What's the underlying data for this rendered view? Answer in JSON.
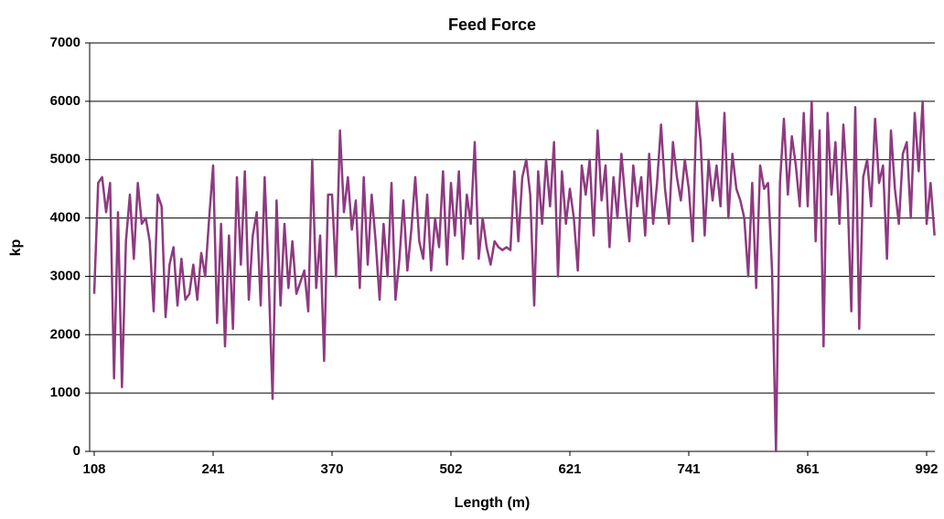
{
  "chart_data": {
    "type": "line",
    "title": "Feed Force",
    "x_label": "Length (m)",
    "y_label": "kp",
    "categories": [
      "108",
      null,
      null,
      null,
      null,
      null,
      null,
      null,
      null,
      null,
      null,
      null,
      null,
      null,
      null,
      null,
      null,
      null,
      null,
      null,
      null,
      null,
      null,
      null,
      null,
      null,
      null,
      null,
      null,
      null,
      "241",
      null,
      null,
      null,
      null,
      null,
      null,
      null,
      null,
      null,
      null,
      null,
      null,
      null,
      null,
      null,
      null,
      null,
      null,
      null,
      null,
      null,
      null,
      null,
      null,
      null,
      null,
      null,
      null,
      null,
      "370",
      null,
      null,
      null,
      null,
      null,
      null,
      null,
      null,
      null,
      null,
      null,
      null,
      null,
      null,
      null,
      null,
      null,
      null,
      null,
      null,
      null,
      null,
      null,
      null,
      null,
      null,
      null,
      null,
      null,
      "502",
      null,
      null,
      null,
      null,
      null,
      null,
      null,
      null,
      null,
      null,
      null,
      null,
      null,
      null,
      null,
      null,
      null,
      null,
      null,
      null,
      null,
      null,
      null,
      null,
      null,
      null,
      null,
      null,
      null,
      "621",
      null,
      null,
      null,
      null,
      null,
      null,
      null,
      null,
      null,
      null,
      null,
      null,
      null,
      null,
      null,
      null,
      null,
      null,
      null,
      null,
      null,
      null,
      null,
      null,
      null,
      null,
      null,
      null,
      null,
      "741",
      null,
      null,
      null,
      null,
      null,
      null,
      null,
      null,
      null,
      null,
      null,
      null,
      null,
      null,
      null,
      null,
      null,
      null,
      null,
      null,
      null,
      null,
      null,
      null,
      null,
      null,
      null,
      null,
      null,
      "861",
      null,
      null,
      null,
      null,
      null,
      null,
      null,
      null,
      null,
      null,
      null,
      null,
      null,
      null,
      null,
      null,
      null,
      null,
      null,
      null,
      null,
      null,
      null,
      null,
      null,
      null,
      null,
      null,
      null,
      "992",
      null,
      null
    ],
    "series": [
      {
        "name": "Feed Force",
        "color": "#8e3a80",
        "values": [
          2700,
          4600,
          4700,
          4100,
          4600,
          1250,
          4100,
          1100,
          3600,
          4400,
          3300,
          4600,
          3900,
          4000,
          3600,
          2400,
          4400,
          4200,
          2300,
          3200,
          3500,
          2500,
          3300,
          2600,
          2700,
          3200,
          2600,
          3400,
          3000,
          4000,
          4900,
          2200,
          3900,
          1800,
          3700,
          2100,
          4700,
          3200,
          4800,
          2600,
          3700,
          4100,
          2500,
          4700,
          3000,
          900,
          4300,
          2500,
          3900,
          2800,
          3600,
          2700,
          2900,
          3100,
          2400,
          5000,
          2800,
          3700,
          1550,
          4400,
          4400,
          3000,
          5500,
          4100,
          4700,
          3800,
          4300,
          2800,
          4700,
          3200,
          4400,
          3600,
          2600,
          3900,
          3000,
          4600,
          2600,
          3300,
          4300,
          3100,
          3800,
          4700,
          3600,
          3300,
          4400,
          3100,
          4000,
          3500,
          4800,
          3200,
          4600,
          3700,
          4800,
          3300,
          4400,
          3900,
          5300,
          3300,
          4000,
          3500,
          3200,
          3600,
          3500,
          3450,
          3500,
          3450,
          4800,
          3600,
          4700,
          5000,
          4400,
          2500,
          4800,
          3900,
          5000,
          4200,
          5300,
          3000,
          4800,
          3900,
          4500,
          4000,
          3100,
          4900,
          4400,
          5000,
          3700,
          5500,
          4300,
          4900,
          3500,
          4700,
          4000,
          5100,
          4300,
          3600,
          4900,
          4200,
          4700,
          3700,
          5100,
          3900,
          4600,
          5600,
          4500,
          3900,
          5300,
          4700,
          4300,
          5000,
          4500,
          3600,
          6000,
          5300,
          3700,
          5000,
          4300,
          4900,
          4200,
          5800,
          4000,
          5100,
          4500,
          4300,
          4000,
          3000,
          4600,
          2800,
          4900,
          4500,
          4600,
          3100,
          0,
          4600,
          5700,
          4400,
          5400,
          4900,
          4200,
          5800,
          4200,
          6000,
          3600,
          5500,
          1800,
          5800,
          4400,
          5300,
          3900,
          5600,
          4500,
          2400,
          5900,
          2100,
          4700,
          5000,
          4200,
          5700,
          4600,
          4900,
          3300,
          5500,
          4500,
          3900,
          5100,
          5300,
          4000,
          5800,
          4800,
          6000,
          3900,
          4600,
          3700
        ]
      }
    ],
    "ylim": [
      0,
      7000
    ],
    "yticks": [
      0,
      1000,
      2000,
      3000,
      4000,
      5000,
      6000,
      7000
    ],
    "grid": true
  }
}
